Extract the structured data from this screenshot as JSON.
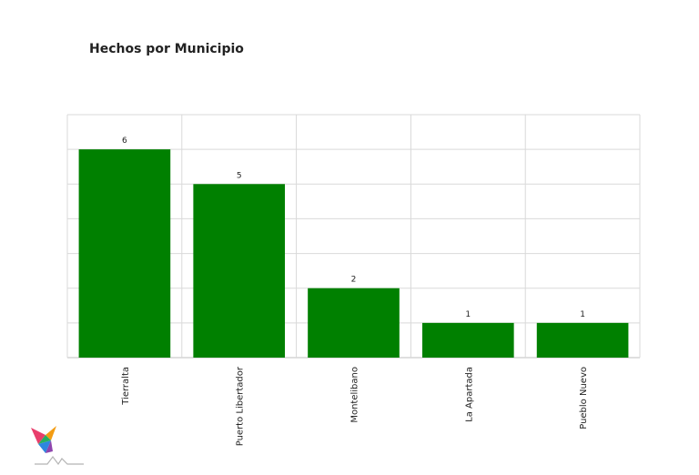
{
  "chart_data": {
    "type": "bar",
    "title": "Hechos por Municipio",
    "categories": [
      "Tierralta",
      "Puerto Libertador",
      "Montelibano",
      "La Apartada",
      "Pueblo Nuevo"
    ],
    "values": [
      6,
      5,
      2,
      1,
      1
    ],
    "xlabel": "",
    "ylabel": "",
    "ylim": [
      0,
      7
    ],
    "grid": true,
    "bar_color": "#008000"
  },
  "colors": {
    "grid": "#d9d9d9",
    "axis": "#bfbfbf",
    "text": "#222222"
  },
  "logo": {
    "icon": "colorful-bird-logo"
  }
}
